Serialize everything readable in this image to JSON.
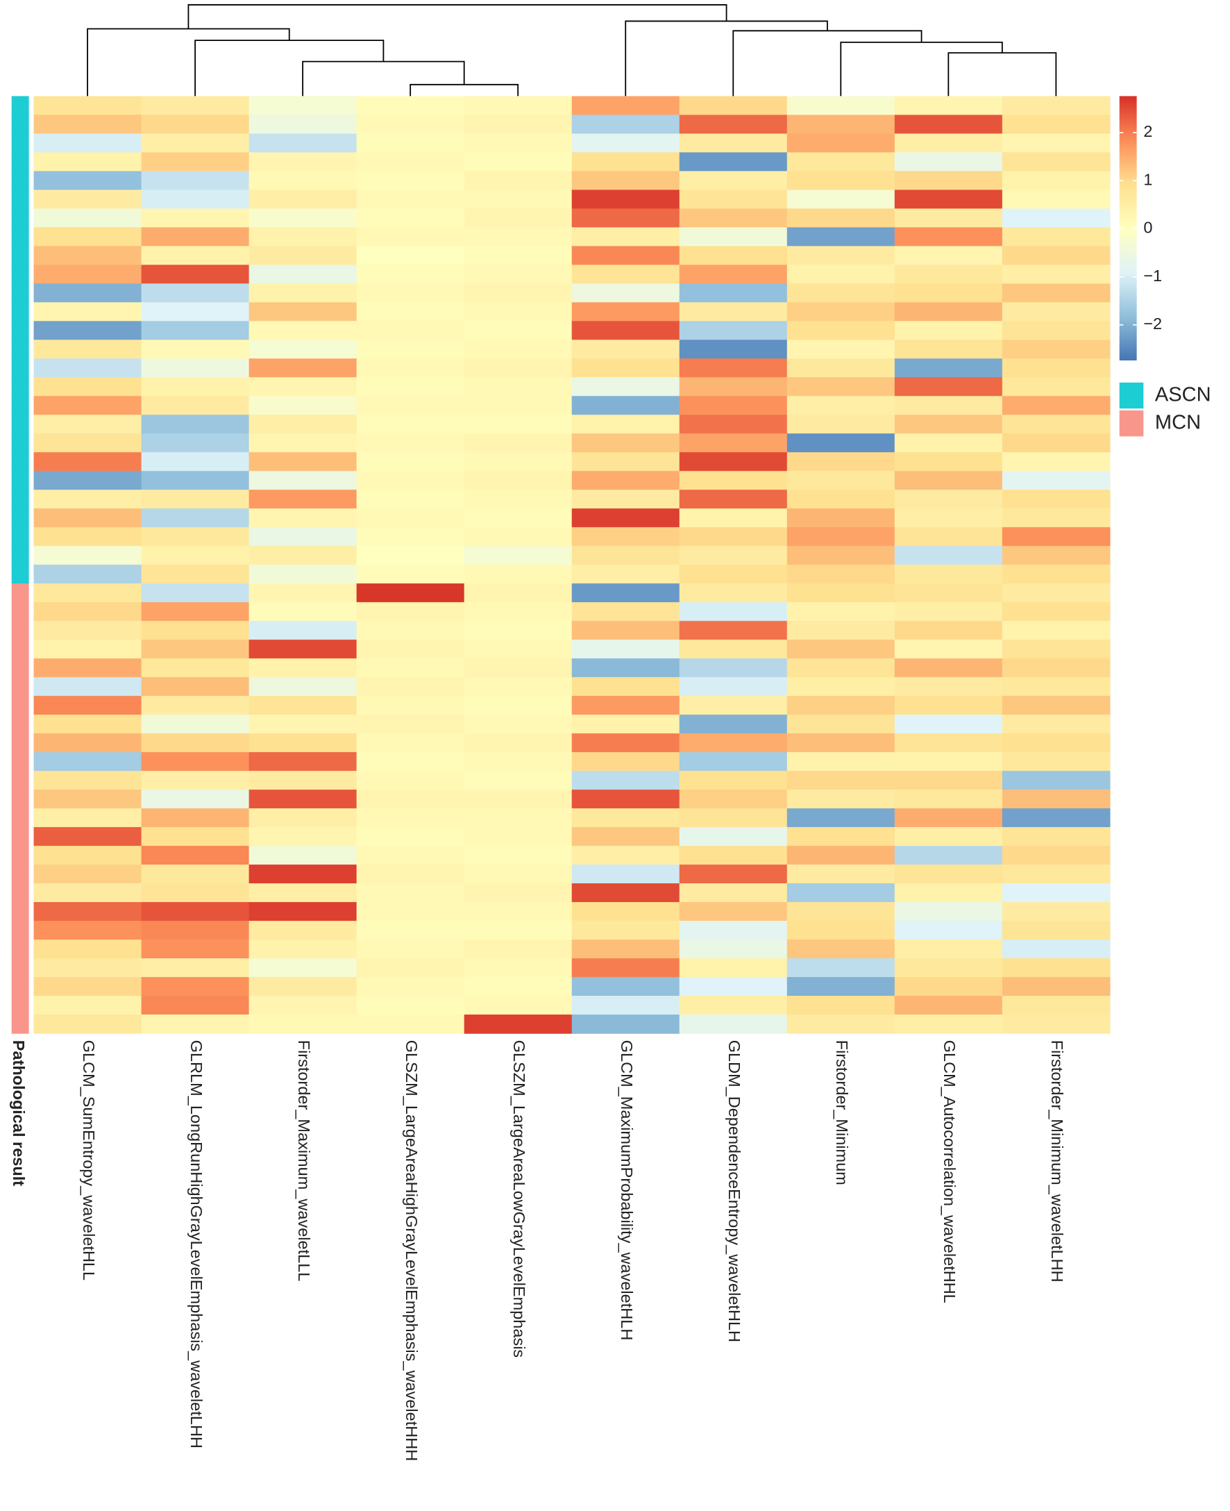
{
  "chart_data": {
    "type": "heatmap",
    "annotation_title": "Pathological result",
    "columns": [
      "GLCM_SumEntropy_waveletHLL",
      "GLRLM_LongRunHighGrayLevelEmphasis_waveletLHH",
      "Firstorder_Maximum_waveletLLL",
      "GLSZM_LargeAreaHighGrayLevelEmphasis_waveletHHH",
      "GLSZM_LargeAreaLowGrayLevelEmphasis",
      "GLCM_MaximumProbability_waveletHLH",
      "GLDM_DependenceEntropy_waveletHLH",
      "Firstorder_Minimum",
      "GLCM_Autocorrelation_waveletHHL",
      "Firstorder_Minimum_waveletLHH"
    ],
    "groups": [
      {
        "name": "ASCN",
        "color": "#1ccdd3"
      },
      {
        "name": "MCN",
        "color": "#f9968b"
      }
    ],
    "row_groups": [
      "ASCN",
      "ASCN",
      "ASCN",
      "ASCN",
      "ASCN",
      "ASCN",
      "ASCN",
      "ASCN",
      "ASCN",
      "ASCN",
      "ASCN",
      "ASCN",
      "ASCN",
      "ASCN",
      "ASCN",
      "ASCN",
      "ASCN",
      "ASCN",
      "ASCN",
      "ASCN",
      "ASCN",
      "ASCN",
      "ASCN",
      "ASCN",
      "ASCN",
      "ASCN",
      "MCN",
      "MCN",
      "MCN",
      "MCN",
      "MCN",
      "MCN",
      "MCN",
      "MCN",
      "MCN",
      "MCN",
      "MCN",
      "MCN",
      "MCN",
      "MCN",
      "MCN",
      "MCN",
      "MCN",
      "MCN",
      "MCN",
      "MCN",
      "MCN",
      "MCN",
      "MCN",
      "MCN"
    ],
    "values": [
      [
        0.8,
        0.6,
        -0.3,
        0.1,
        0.2,
        1.6,
        1.0,
        -0.2,
        0.3,
        0.6
      ],
      [
        1.2,
        1.0,
        -0.5,
        0.2,
        0.3,
        -1.5,
        2.2,
        1.4,
        2.4,
        0.9
      ],
      [
        -1.0,
        0.5,
        -1.2,
        0.1,
        0.2,
        -0.8,
        0.6,
        1.5,
        0.5,
        0.3
      ],
      [
        0.4,
        1.1,
        0.3,
        0.2,
        0.1,
        0.9,
        -2.3,
        0.7,
        -0.6,
        0.8
      ],
      [
        -1.8,
        -1.2,
        0.2,
        0.1,
        0.3,
        1.2,
        0.5,
        0.9,
        1.0,
        0.4
      ],
      [
        0.6,
        -1.0,
        0.5,
        0.2,
        0.2,
        2.6,
        0.8,
        -0.3,
        2.5,
        0.2
      ],
      [
        -0.4,
        0.3,
        -0.2,
        0.1,
        0.3,
        2.2,
        1.2,
        1.0,
        0.6,
        -0.9
      ],
      [
        0.9,
        1.5,
        0.4,
        0.2,
        0.2,
        0.5,
        -0.4,
        -2.2,
        1.8,
        0.7
      ],
      [
        1.3,
        0.4,
        0.6,
        0.0,
        0.1,
        1.9,
        0.9,
        0.6,
        0.3,
        1.0
      ],
      [
        1.5,
        2.4,
        -0.6,
        0.1,
        0.2,
        0.8,
        1.6,
        0.4,
        0.7,
        0.5
      ],
      [
        -2.0,
        -1.3,
        0.4,
        0.2,
        0.3,
        -0.5,
        -1.8,
        0.8,
        0.9,
        1.2
      ],
      [
        0.3,
        -0.9,
        1.2,
        0.1,
        0.2,
        1.7,
        0.6,
        1.1,
        1.4,
        0.6
      ],
      [
        -2.2,
        -1.6,
        0.2,
        0.2,
        0.1,
        2.4,
        -1.5,
        0.9,
        0.4,
        0.8
      ],
      [
        0.7,
        0.2,
        -0.3,
        0.1,
        0.2,
        0.6,
        -2.4,
        0.3,
        0.8,
        1.1
      ],
      [
        -1.2,
        -0.5,
        1.6,
        0.2,
        0.3,
        0.9,
        2.0,
        0.7,
        -2.1,
        0.9
      ],
      [
        0.9,
        0.4,
        0.3,
        0.1,
        0.2,
        -0.6,
        1.4,
        1.2,
        2.2,
        0.7
      ],
      [
        1.6,
        0.6,
        -0.2,
        0.2,
        0.2,
        -2.0,
        1.8,
        0.5,
        0.6,
        1.5
      ],
      [
        0.5,
        -1.7,
        0.5,
        0.1,
        0.1,
        0.4,
        2.1,
        0.6,
        1.2,
        0.8
      ],
      [
        0.8,
        -1.5,
        0.3,
        0.2,
        0.3,
        1.2,
        1.6,
        -2.4,
        0.4,
        1.0
      ],
      [
        2.0,
        -1.0,
        1.3,
        0.1,
        0.2,
        0.8,
        2.5,
        1.0,
        0.9,
        0.3
      ],
      [
        -2.1,
        -1.8,
        -0.5,
        0.2,
        0.3,
        1.5,
        0.9,
        0.7,
        1.3,
        -0.8
      ],
      [
        0.5,
        0.6,
        1.7,
        0.1,
        0.2,
        0.6,
        2.2,
        0.9,
        0.6,
        0.9
      ],
      [
        1.3,
        -1.4,
        0.3,
        0.2,
        0.1,
        2.6,
        0.4,
        1.4,
        0.5,
        0.7
      ],
      [
        0.9,
        0.7,
        -0.6,
        0.1,
        0.2,
        1.1,
        1.0,
        1.6,
        0.8,
        1.8
      ],
      [
        -0.3,
        0.4,
        0.5,
        0.0,
        -0.3,
        0.8,
        0.6,
        1.3,
        -1.2,
        1.2
      ],
      [
        -1.5,
        0.8,
        -0.4,
        0.1,
        0.2,
        0.5,
        0.9,
        1.0,
        0.7,
        0.9
      ],
      [
        0.7,
        -1.2,
        0.3,
        2.7,
        0.3,
        -2.3,
        0.6,
        0.9,
        0.8,
        0.6
      ],
      [
        1.0,
        1.6,
        0.1,
        0.3,
        0.2,
        0.8,
        -1.0,
        0.4,
        0.5,
        0.9
      ],
      [
        0.6,
        0.9,
        -1.0,
        0.2,
        0.1,
        1.3,
        2.1,
        0.6,
        1.0,
        0.4
      ],
      [
        0.4,
        1.2,
        2.5,
        0.3,
        0.2,
        -0.7,
        0.7,
        1.2,
        0.3,
        0.8
      ],
      [
        1.5,
        0.7,
        0.4,
        0.2,
        0.3,
        -1.9,
        -1.4,
        0.8,
        1.4,
        1.0
      ],
      [
        -1.1,
        1.3,
        -0.5,
        0.3,
        0.2,
        0.9,
        -1.0,
        0.5,
        0.6,
        0.7
      ],
      [
        1.9,
        0.6,
        0.8,
        0.2,
        0.1,
        1.7,
        0.5,
        1.1,
        0.9,
        1.2
      ],
      [
        0.9,
        -0.4,
        0.3,
        0.3,
        0.2,
        0.4,
        -2.0,
        0.8,
        -0.9,
        0.6
      ],
      [
        1.4,
        1.0,
        0.9,
        0.2,
        0.3,
        2.0,
        1.5,
        1.3,
        0.8,
        0.9
      ],
      [
        -1.6,
        1.8,
        2.2,
        0.1,
        0.2,
        1.0,
        -1.6,
        0.4,
        0.4,
        0.7
      ],
      [
        0.8,
        0.5,
        0.6,
        0.2,
        0.1,
        -1.3,
        0.9,
        1.0,
        1.0,
        -1.7
      ],
      [
        1.2,
        -0.6,
        2.4,
        0.3,
        0.3,
        2.4,
        1.1,
        0.6,
        0.7,
        1.3
      ],
      [
        0.5,
        1.4,
        0.5,
        0.2,
        0.2,
        0.7,
        0.8,
        -2.1,
        1.5,
        -2.2
      ],
      [
        2.3,
        0.9,
        0.3,
        0.1,
        0.2,
        1.2,
        -0.7,
        0.9,
        0.5,
        0.8
      ],
      [
        0.9,
        1.9,
        -0.4,
        0.2,
        0.1,
        0.5,
        0.9,
        1.4,
        -1.4,
        1.0
      ],
      [
        1.1,
        0.7,
        2.6,
        0.3,
        0.2,
        -1.1,
        2.2,
        0.6,
        0.8,
        0.7
      ],
      [
        0.6,
        0.8,
        0.5,
        0.2,
        0.3,
        2.5,
        0.6,
        -1.6,
        0.4,
        -0.9
      ],
      [
        2.2,
        2.4,
        2.6,
        0.2,
        0.2,
        0.9,
        1.2,
        0.8,
        -0.6,
        0.6
      ],
      [
        1.8,
        1.9,
        0.6,
        0.1,
        0.1,
        0.7,
        -0.8,
        0.9,
        -0.9,
        0.8
      ],
      [
        0.9,
        1.8,
        0.4,
        0.2,
        0.3,
        1.3,
        -0.6,
        1.2,
        0.5,
        -1.0
      ],
      [
        0.6,
        0.5,
        -0.3,
        0.3,
        0.2,
        2.0,
        0.4,
        -1.3,
        0.7,
        0.9
      ],
      [
        1.0,
        1.8,
        0.6,
        0.2,
        0.1,
        -1.8,
        -0.9,
        -2.0,
        1.0,
        1.3
      ],
      [
        0.4,
        1.9,
        0.3,
        0.1,
        0.2,
        -1.0,
        0.5,
        0.9,
        1.4,
        0.7
      ],
      [
        0.7,
        0.3,
        0.2,
        0.2,
        2.6,
        -1.9,
        -0.7,
        0.6,
        0.5,
        0.6
      ]
    ],
    "zlim": [
      -2.74,
      2.76
    ],
    "zticks": [
      2,
      1,
      0,
      {
        "value": -1,
        "label": "−1"
      },
      {
        "value": -2,
        "label": "−2"
      }
    ],
    "colors": [
      "#4575b4",
      "#91bfdb",
      "#e0f3f8",
      "#ffffbf",
      "#fee090",
      "#fc8d59",
      "#d73027"
    ]
  }
}
